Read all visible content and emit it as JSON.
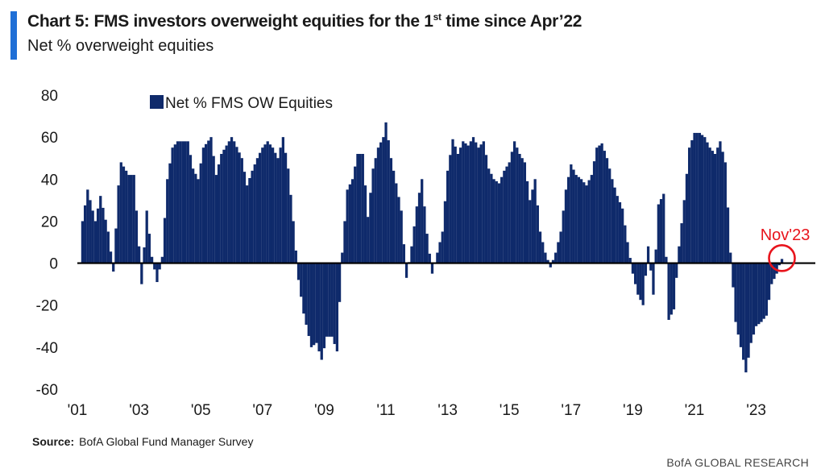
{
  "header": {
    "title_pre": "Chart 5: FMS investors overweight equities for the 1",
    "title_sup": "st",
    "title_post": " time since Apr’22",
    "subtitle": "Net % overweight equities"
  },
  "footer": {
    "source_label": "Source:",
    "source_text": "BofA Global Fund Manager Survey",
    "brand": "BofA GLOBAL RESEARCH"
  },
  "colors": {
    "bar": "#0f2a6b",
    "zero_line": "#000000",
    "highlight": "#e8141c",
    "accent": "#1f6fd6"
  },
  "chart_data": {
    "type": "bar",
    "title": "Chart 5: FMS investors overweight equities for the 1st time since Apr’22",
    "subtitle": "Net % overweight equities",
    "xlabel": "",
    "ylabel": "",
    "ylim": [
      -60,
      80
    ],
    "yticks": [
      80,
      60,
      40,
      20,
      0,
      -20,
      -40,
      -60
    ],
    "xtick_labels": [
      "'01",
      "'03",
      "'05",
      "'07",
      "'09",
      "'11",
      "'13",
      "'15",
      "'17",
      "'19",
      "'21",
      "'23"
    ],
    "xtick_years": [
      2001,
      2003,
      2005,
      2007,
      2009,
      2011,
      2013,
      2015,
      2017,
      2019,
      2021,
      2023
    ],
    "x_start": "2001-01",
    "x_end": "2024-12",
    "legend": {
      "label": "Net % FMS OW Equities",
      "position": "top-left"
    },
    "annotation": {
      "label": "Nov'23",
      "date": "2023-11",
      "value": 2
    },
    "series": [
      {
        "name": "Net % FMS OW Equities",
        "points": [
          [
            "2001-03",
            20
          ],
          [
            "2001-05",
            35
          ],
          [
            "2001-08",
            20
          ],
          [
            "2001-10",
            32
          ],
          [
            "2002-01",
            15
          ],
          [
            "2002-03",
            -4
          ],
          [
            "2002-05",
            37
          ],
          [
            "2002-06",
            48
          ],
          [
            "2002-09",
            42
          ],
          [
            "2002-11",
            42
          ],
          [
            "2003-01",
            8
          ],
          [
            "2003-02",
            -10
          ],
          [
            "2003-04",
            25
          ],
          [
            "2003-06",
            3
          ],
          [
            "2003-08",
            -9
          ],
          [
            "2003-10",
            3
          ],
          [
            "2003-12",
            40
          ],
          [
            "2004-02",
            55
          ],
          [
            "2004-04",
            58
          ],
          [
            "2004-08",
            58
          ],
          [
            "2004-10",
            45
          ],
          [
            "2004-12",
            40
          ],
          [
            "2005-02",
            55
          ],
          [
            "2005-05",
            60
          ],
          [
            "2005-07",
            42
          ],
          [
            "2005-09",
            52
          ],
          [
            "2005-11",
            56
          ],
          [
            "2006-01",
            60
          ],
          [
            "2006-02",
            58
          ],
          [
            "2006-05",
            50
          ],
          [
            "2006-07",
            37
          ],
          [
            "2006-09",
            44
          ],
          [
            "2006-11",
            50
          ],
          [
            "2007-01",
            55
          ],
          [
            "2007-03",
            58
          ],
          [
            "2007-05",
            55
          ],
          [
            "2007-07",
            50
          ],
          [
            "2007-09",
            60
          ],
          [
            "2007-11",
            45
          ],
          [
            "2008-01",
            20
          ],
          [
            "2008-03",
            -8
          ],
          [
            "2008-05",
            -24
          ],
          [
            "2008-08",
            -40
          ],
          [
            "2008-10",
            -38
          ],
          [
            "2008-12",
            -46
          ],
          [
            "2009-02",
            -35
          ],
          [
            "2009-04",
            -35
          ],
          [
            "2009-06",
            -42
          ],
          [
            "2009-08",
            5
          ],
          [
            "2009-10",
            35
          ],
          [
            "2009-12",
            40
          ],
          [
            "2010-02",
            52
          ],
          [
            "2010-04",
            52
          ],
          [
            "2010-06",
            22
          ],
          [
            "2010-08",
            45
          ],
          [
            "2010-10",
            55
          ],
          [
            "2010-12",
            60
          ],
          [
            "2011-01",
            67
          ],
          [
            "2011-03",
            50
          ],
          [
            "2011-05",
            38
          ],
          [
            "2011-07",
            25
          ],
          [
            "2011-09",
            -7
          ],
          [
            "2011-11",
            8
          ],
          [
            "2012-01",
            27
          ],
          [
            "2012-03",
            40
          ],
          [
            "2012-05",
            14
          ],
          [
            "2012-07",
            -5
          ],
          [
            "2012-09",
            5
          ],
          [
            "2012-11",
            15
          ],
          [
            "2013-01",
            44
          ],
          [
            "2013-03",
            59
          ],
          [
            "2013-05",
            52
          ],
          [
            "2013-07",
            58
          ],
          [
            "2013-09",
            56
          ],
          [
            "2013-11",
            60
          ],
          [
            "2014-01",
            55
          ],
          [
            "2014-03",
            58
          ],
          [
            "2014-05",
            45
          ],
          [
            "2014-07",
            40
          ],
          [
            "2014-09",
            38
          ],
          [
            "2014-11",
            44
          ],
          [
            "2015-01",
            48
          ],
          [
            "2015-03",
            58
          ],
          [
            "2015-05",
            52
          ],
          [
            "2015-07",
            48
          ],
          [
            "2015-09",
            30
          ],
          [
            "2015-11",
            40
          ],
          [
            "2016-01",
            15
          ],
          [
            "2016-03",
            5
          ],
          [
            "2016-05",
            -2
          ],
          [
            "2016-07",
            5
          ],
          [
            "2016-09",
            15
          ],
          [
            "2016-11",
            35
          ],
          [
            "2017-01",
            47
          ],
          [
            "2017-03",
            42
          ],
          [
            "2017-05",
            40
          ],
          [
            "2017-07",
            37
          ],
          [
            "2017-09",
            42
          ],
          [
            "2017-11",
            55
          ],
          [
            "2018-01",
            57
          ],
          [
            "2018-03",
            50
          ],
          [
            "2018-05",
            40
          ],
          [
            "2018-07",
            32
          ],
          [
            "2018-09",
            26
          ],
          [
            "2018-11",
            10
          ],
          [
            "2019-01",
            -5
          ],
          [
            "2019-03",
            -15
          ],
          [
            "2019-05",
            -20
          ],
          [
            "2019-07",
            8
          ],
          [
            "2019-09",
            -15
          ],
          [
            "2019-11",
            28
          ],
          [
            "2020-01",
            33
          ],
          [
            "2020-03",
            -27
          ],
          [
            "2020-05",
            -22
          ],
          [
            "2020-07",
            8
          ],
          [
            "2020-09",
            30
          ],
          [
            "2020-11",
            55
          ],
          [
            "2021-01",
            62
          ],
          [
            "2021-03",
            62
          ],
          [
            "2021-05",
            60
          ],
          [
            "2021-07",
            55
          ],
          [
            "2021-09",
            52
          ],
          [
            "2021-11",
            58
          ],
          [
            "2022-01",
            48
          ],
          [
            "2022-03",
            5
          ],
          [
            "2022-05",
            -28
          ],
          [
            "2022-07",
            -40
          ],
          [
            "2022-09",
            -52
          ],
          [
            "2022-11",
            -38
          ],
          [
            "2023-01",
            -30
          ],
          [
            "2023-03",
            -28
          ],
          [
            "2023-05",
            -25
          ],
          [
            "2023-07",
            -10
          ],
          [
            "2023-09",
            -5
          ],
          [
            "2023-10",
            -1
          ],
          [
            "2023-11",
            2
          ]
        ]
      }
    ]
  }
}
